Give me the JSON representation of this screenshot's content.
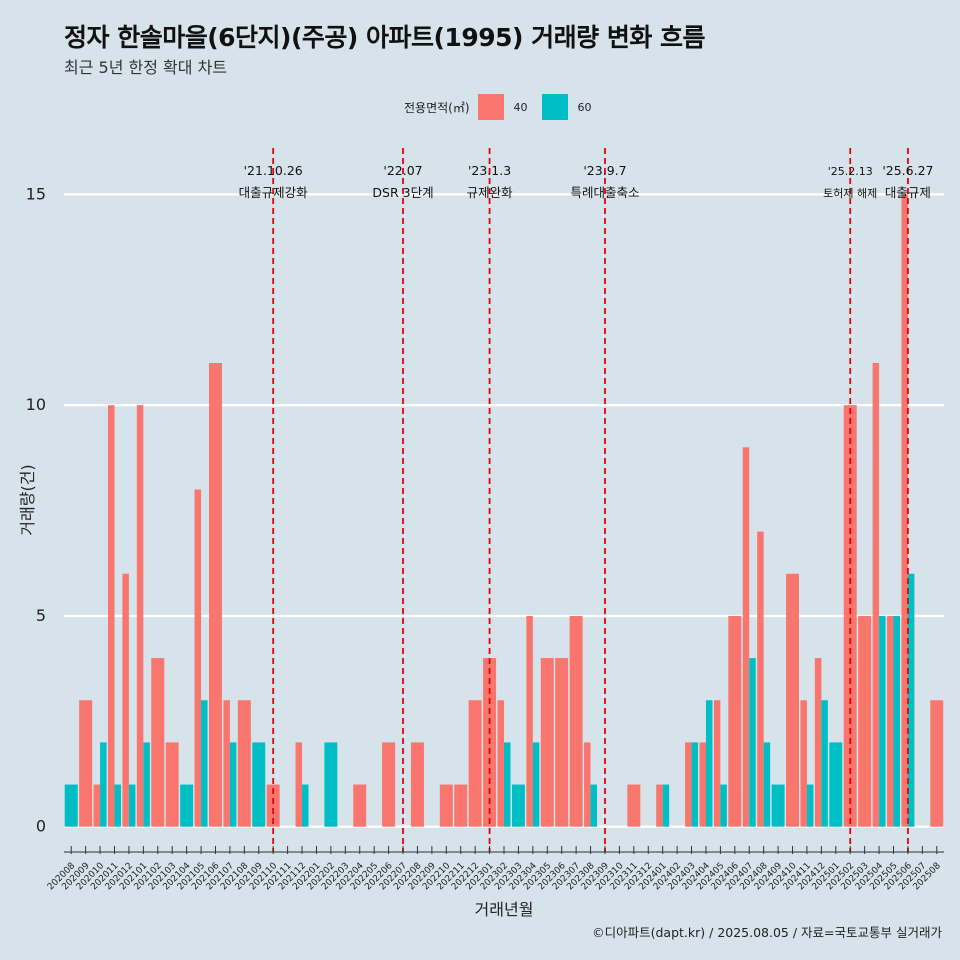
{
  "title": "정자 한솔마을(6단지)(주공) 아파트(1995) 거래량 변화 흐름",
  "subtitle": "최근 5년 한정 확대 차트",
  "legend": {
    "title": "전용면적(㎡)",
    "items": [
      "40",
      "60"
    ]
  },
  "caption": "©디아파트(dapt.kr) / 2025.08.05 / 자료=국토교통부 실거래가",
  "colors": {
    "s40": "#f8766d",
    "s60": "#00bfc4",
    "vline": "#e8000b",
    "grid": "#ffffff"
  },
  "chart_data": {
    "type": "bar",
    "xlabel": "거래년월",
    "ylabel": "거래량(건)",
    "ylim": [
      -0.6,
      16.1
    ],
    "yticks": [
      0,
      5,
      10,
      15
    ],
    "categories": [
      "202008",
      "202009",
      "202010",
      "202011",
      "202012",
      "202101",
      "202102",
      "202103",
      "202104",
      "202105",
      "202106",
      "202107",
      "202108",
      "202109",
      "202110",
      "202111",
      "202112",
      "202201",
      "202202",
      "202203",
      "202204",
      "202205",
      "202206",
      "202207",
      "202208",
      "202209",
      "202210",
      "202211",
      "202212",
      "202301",
      "202302",
      "202303",
      "202304",
      "202305",
      "202306",
      "202307",
      "202308",
      "202309",
      "202310",
      "202311",
      "202312",
      "202401",
      "202402",
      "202403",
      "202404",
      "202405",
      "202406",
      "202407",
      "202408",
      "202409",
      "202410",
      "202411",
      "202412",
      "202501",
      "202502",
      "202503",
      "202504",
      "202505",
      "202506",
      "202507",
      "202508"
    ],
    "series": [
      {
        "name": "40",
        "values": [
          0,
          3,
          1,
          10,
          6,
          10,
          4,
          2,
          0,
          8,
          11,
          3,
          3,
          0,
          1,
          0,
          2,
          0,
          0,
          0,
          1,
          0,
          2,
          0,
          2,
          0,
          1,
          1,
          3,
          4,
          3,
          0,
          5,
          4,
          4,
          5,
          2,
          0,
          0,
          1,
          0,
          1,
          0,
          2,
          2,
          3,
          5,
          9,
          7,
          0,
          6,
          3,
          4,
          0,
          10,
          5,
          11,
          5,
          15,
          0,
          3
        ]
      },
      {
        "name": "60",
        "values": [
          1,
          0,
          2,
          1,
          1,
          2,
          0,
          0,
          1,
          3,
          0,
          2,
          0,
          2,
          0,
          0,
          1,
          0,
          2,
          0,
          0,
          0,
          0,
          0,
          0,
          0,
          0,
          0,
          0,
          0,
          2,
          1,
          2,
          0,
          0,
          0,
          1,
          0,
          0,
          0,
          0,
          1,
          0,
          2,
          3,
          1,
          0,
          4,
          2,
          1,
          0,
          1,
          3,
          2,
          0,
          0,
          5,
          5,
          6,
          0,
          0
        ]
      }
    ],
    "events": [
      {
        "category": "202110",
        "date": "'21.10.26",
        "label": "대출규제강화"
      },
      {
        "category": "202207",
        "date": "'22.07",
        "label": "DSR 3단계"
      },
      {
        "category": "202301",
        "date": "'23.1.3",
        "label": "규제완화"
      },
      {
        "category": "202309",
        "date": "'23.9.7",
        "label": "특례대출축소"
      },
      {
        "category": "202502",
        "date": "'25.2.13",
        "label": "토허제 해제"
      },
      {
        "category": "202506",
        "date": "'25.6.27",
        "label": "대출규제"
      }
    ]
  }
}
